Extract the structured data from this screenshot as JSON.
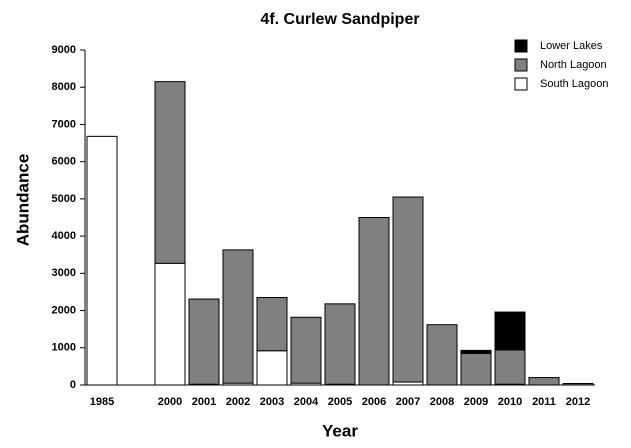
{
  "chart_data": {
    "type": "stacked_bar",
    "title": "4f. Curlew Sandpiper",
    "x_label": "Year",
    "y_label": "Abundance",
    "categories": [
      "1985",
      null,
      "2000",
      "2001",
      "2002",
      "2003",
      "2004",
      "2005",
      "2006",
      "2007",
      "2008",
      "2009",
      "2010",
      "2011",
      "2012"
    ],
    "series": [
      {
        "name": "Lower Lakes",
        "color": "#000000",
        "values": [
          0,
          null,
          0,
          0,
          0,
          0,
          0,
          0,
          0,
          0,
          0,
          80,
          1020,
          0,
          0
        ]
      },
      {
        "name": "North Lagoon",
        "color": "#808080",
        "values": [
          0,
          null,
          4880,
          2290,
          3580,
          1430,
          1770,
          2160,
          4500,
          4970,
          1620,
          850,
          920,
          200,
          40
        ]
      },
      {
        "name": "South Lagoon",
        "color": "#ffffff",
        "values": [
          6680,
          null,
          3270,
          20,
          50,
          920,
          50,
          20,
          0,
          80,
          0,
          0,
          20,
          0,
          0
        ]
      }
    ],
    "ylim": [
      0,
      9000
    ],
    "yticks": [
      0,
      1000,
      2000,
      3000,
      4000,
      5000,
      6000,
      7000,
      8000,
      9000
    ],
    "legend": "top-right",
    "grid": false
  }
}
